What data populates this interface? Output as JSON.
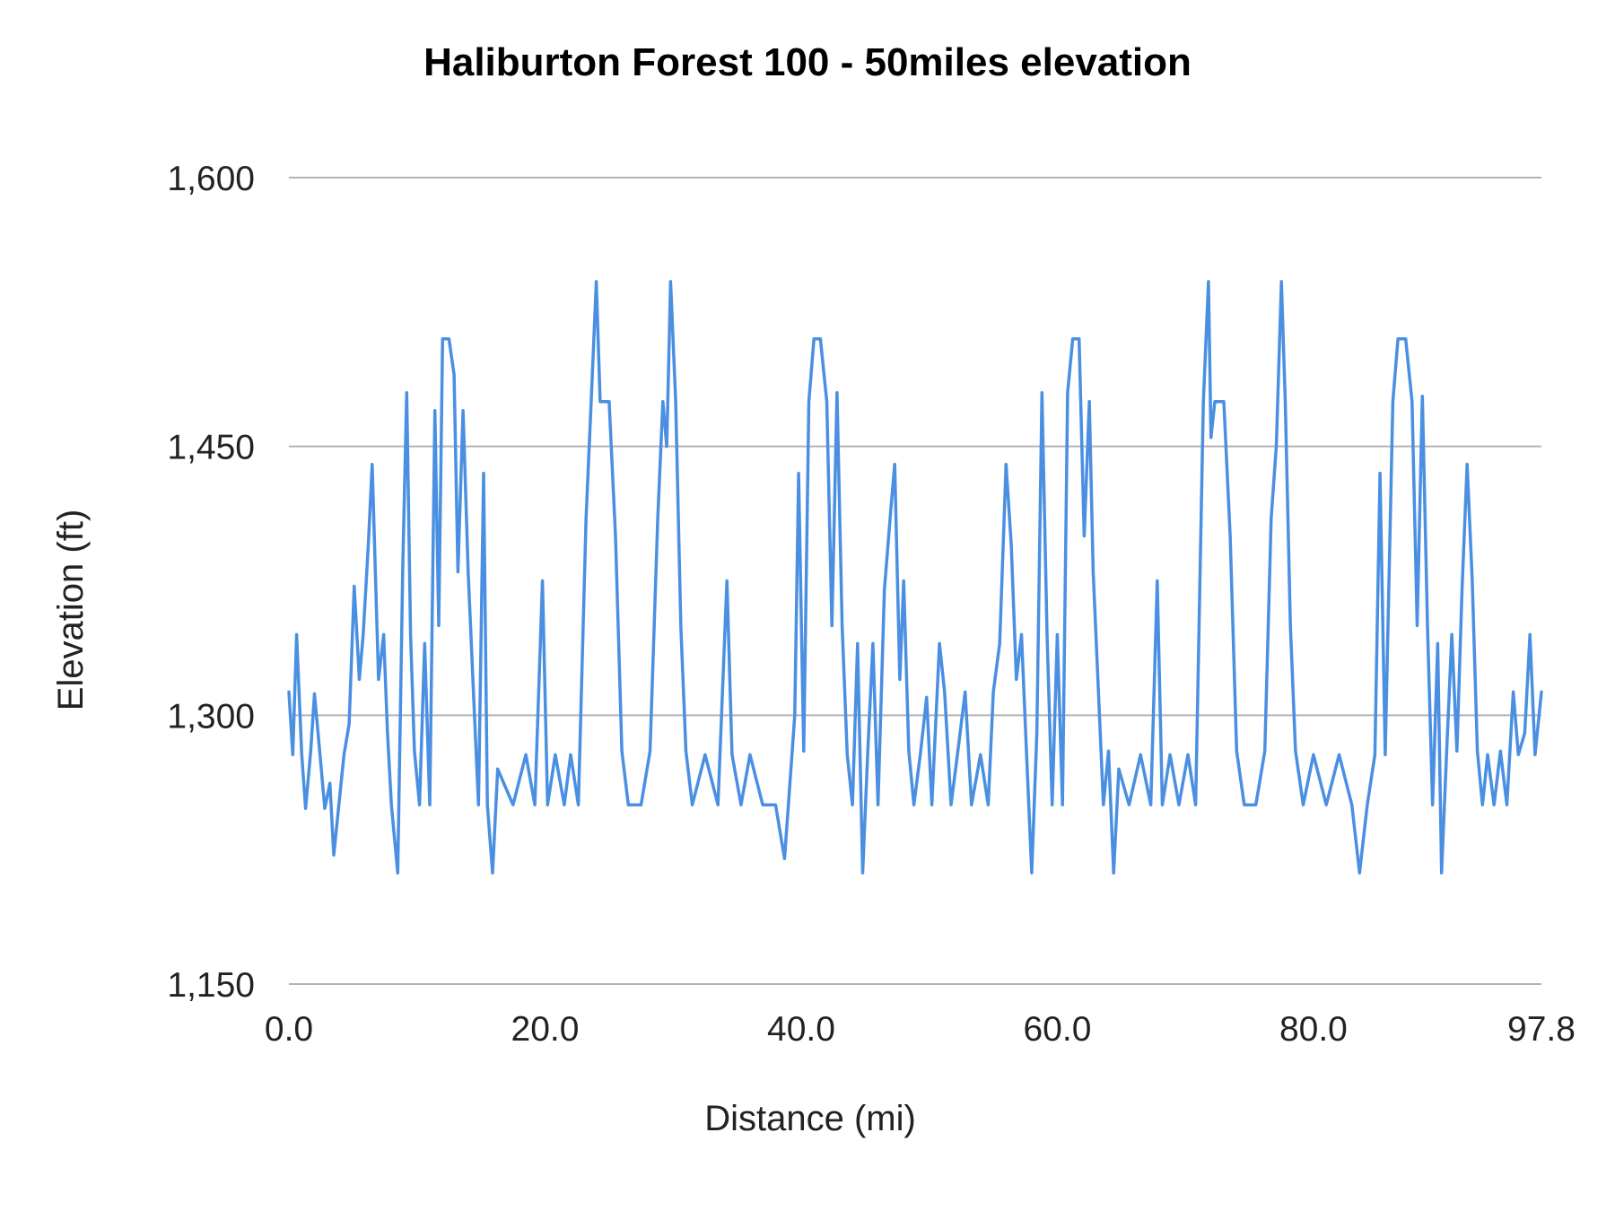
{
  "chart_data": {
    "type": "line",
    "title": "Haliburton Forest 100 - 50miles elevation",
    "xlabel": "Distance (mi)",
    "ylabel": "Elevation (ft)",
    "xlim": [
      0,
      97.8
    ],
    "ylim": [
      1150,
      1600
    ],
    "x_ticks": [
      0,
      20,
      40,
      60,
      80,
      97.8
    ],
    "x_tick_labels": [
      "0.0",
      "20.0",
      "40.0",
      "60.0",
      "80.0",
      "97.8"
    ],
    "y_ticks": [
      1150,
      1300,
      1450,
      1600
    ],
    "y_tick_labels": [
      "1,150",
      "1,300",
      "1,450",
      "1,600"
    ],
    "grid": true,
    "legend": "none",
    "series_color": "#4a8fe2",
    "series": [
      {
        "points": [
          [
            0.0,
            1313
          ],
          [
            0.3,
            1278
          ],
          [
            0.6,
            1345
          ],
          [
            1.0,
            1278
          ],
          [
            1.3,
            1248
          ],
          [
            1.7,
            1280
          ],
          [
            2.0,
            1312
          ],
          [
            2.4,
            1280
          ],
          [
            2.8,
            1248
          ],
          [
            3.2,
            1262
          ],
          [
            3.5,
            1222
          ],
          [
            3.9,
            1250
          ],
          [
            4.3,
            1278
          ],
          [
            4.7,
            1295
          ],
          [
            5.1,
            1372
          ],
          [
            5.5,
            1320
          ],
          [
            5.8,
            1345
          ],
          [
            6.2,
            1395
          ],
          [
            6.5,
            1440
          ],
          [
            7.0,
            1320
          ],
          [
            7.4,
            1345
          ],
          [
            7.7,
            1290
          ],
          [
            8.0,
            1250
          ],
          [
            8.5,
            1212
          ],
          [
            8.9,
            1385
          ],
          [
            9.2,
            1480
          ],
          [
            9.5,
            1345
          ],
          [
            9.8,
            1280
          ],
          [
            10.2,
            1250
          ],
          [
            10.6,
            1340
          ],
          [
            11.0,
            1250
          ],
          [
            11.4,
            1470
          ],
          [
            11.7,
            1350
          ],
          [
            12.0,
            1510
          ],
          [
            12.5,
            1510
          ],
          [
            12.9,
            1490
          ],
          [
            13.2,
            1380
          ],
          [
            13.6,
            1470
          ],
          [
            14.0,
            1380
          ],
          [
            14.4,
            1315
          ],
          [
            14.8,
            1250
          ],
          [
            15.2,
            1435
          ],
          [
            15.5,
            1250
          ],
          [
            15.9,
            1212
          ],
          [
            16.3,
            1270
          ],
          [
            17.5,
            1250
          ],
          [
            18.5,
            1278
          ],
          [
            19.2,
            1250
          ],
          [
            19.8,
            1375
          ],
          [
            20.2,
            1250
          ],
          [
            20.8,
            1278
          ],
          [
            21.5,
            1250
          ],
          [
            22.0,
            1278
          ],
          [
            22.6,
            1250
          ],
          [
            23.2,
            1410
          ],
          [
            23.6,
            1475
          ],
          [
            24.0,
            1542
          ],
          [
            24.3,
            1475
          ],
          [
            25.0,
            1475
          ],
          [
            25.5,
            1400
          ],
          [
            26.0,
            1280
          ],
          [
            26.5,
            1250
          ],
          [
            27.5,
            1250
          ],
          [
            28.2,
            1280
          ],
          [
            28.8,
            1410
          ],
          [
            29.2,
            1475
          ],
          [
            29.5,
            1450
          ],
          [
            29.8,
            1542
          ],
          [
            30.2,
            1475
          ],
          [
            30.6,
            1350
          ],
          [
            31.0,
            1280
          ],
          [
            31.5,
            1250
          ],
          [
            32.5,
            1278
          ],
          [
            33.5,
            1250
          ],
          [
            34.2,
            1375
          ],
          [
            34.6,
            1278
          ],
          [
            35.3,
            1250
          ],
          [
            36.0,
            1278
          ],
          [
            37.0,
            1250
          ],
          [
            38.0,
            1250
          ],
          [
            38.7,
            1220
          ],
          [
            39.0,
            1250
          ],
          [
            39.5,
            1300
          ],
          [
            39.8,
            1435
          ],
          [
            40.2,
            1280
          ],
          [
            40.6,
            1475
          ],
          [
            41.0,
            1510
          ],
          [
            41.5,
            1510
          ],
          [
            42.0,
            1475
          ],
          [
            42.4,
            1350
          ],
          [
            42.8,
            1480
          ],
          [
            43.2,
            1350
          ],
          [
            43.6,
            1278
          ],
          [
            44.0,
            1250
          ],
          [
            44.4,
            1340
          ],
          [
            44.8,
            1212
          ],
          [
            45.2,
            1280
          ],
          [
            45.6,
            1340
          ],
          [
            46.0,
            1250
          ],
          [
            46.5,
            1370
          ],
          [
            47.0,
            1415
          ],
          [
            47.3,
            1440
          ],
          [
            47.7,
            1320
          ],
          [
            48.0,
            1375
          ],
          [
            48.4,
            1280
          ],
          [
            48.8,
            1250
          ],
          [
            49.3,
            1278
          ],
          [
            49.8,
            1310
          ],
          [
            50.2,
            1250
          ],
          [
            50.8,
            1340
          ],
          [
            51.2,
            1313
          ],
          [
            51.7,
            1250
          ],
          [
            52.2,
            1278
          ],
          [
            52.8,
            1313
          ],
          [
            53.3,
            1250
          ],
          [
            54.0,
            1278
          ],
          [
            54.6,
            1250
          ],
          [
            55.0,
            1313
          ],
          [
            55.5,
            1340
          ],
          [
            56.0,
            1440
          ],
          [
            56.4,
            1395
          ],
          [
            56.8,
            1320
          ],
          [
            57.2,
            1345
          ],
          [
            57.6,
            1278
          ],
          [
            58.0,
            1212
          ],
          [
            58.4,
            1290
          ],
          [
            58.8,
            1480
          ],
          [
            59.2,
            1345
          ],
          [
            59.6,
            1250
          ],
          [
            60.0,
            1345
          ],
          [
            60.4,
            1250
          ],
          [
            60.8,
            1480
          ],
          [
            61.2,
            1510
          ],
          [
            61.7,
            1510
          ],
          [
            62.1,
            1400
          ],
          [
            62.5,
            1475
          ],
          [
            62.8,
            1380
          ],
          [
            63.2,
            1315
          ],
          [
            63.6,
            1250
          ],
          [
            64.0,
            1280
          ],
          [
            64.4,
            1212
          ],
          [
            64.8,
            1270
          ],
          [
            65.6,
            1250
          ],
          [
            66.5,
            1278
          ],
          [
            67.3,
            1250
          ],
          [
            67.8,
            1375
          ],
          [
            68.2,
            1250
          ],
          [
            68.8,
            1278
          ],
          [
            69.5,
            1250
          ],
          [
            70.2,
            1278
          ],
          [
            70.8,
            1250
          ],
          [
            71.4,
            1475
          ],
          [
            71.8,
            1542
          ],
          [
            72.0,
            1455
          ],
          [
            72.3,
            1475
          ],
          [
            73.0,
            1475
          ],
          [
            73.5,
            1400
          ],
          [
            74.0,
            1280
          ],
          [
            74.6,
            1250
          ],
          [
            75.5,
            1250
          ],
          [
            76.2,
            1280
          ],
          [
            76.7,
            1410
          ],
          [
            77.1,
            1450
          ],
          [
            77.5,
            1542
          ],
          [
            77.8,
            1475
          ],
          [
            78.2,
            1350
          ],
          [
            78.6,
            1280
          ],
          [
            79.2,
            1250
          ],
          [
            80.0,
            1278
          ],
          [
            81.0,
            1250
          ],
          [
            82.0,
            1278
          ],
          [
            83.0,
            1250
          ],
          [
            83.6,
            1212
          ],
          [
            84.2,
            1250
          ],
          [
            84.8,
            1278
          ],
          [
            85.2,
            1435
          ],
          [
            85.6,
            1278
          ],
          [
            86.2,
            1475
          ],
          [
            86.6,
            1510
          ],
          [
            87.2,
            1510
          ],
          [
            87.7,
            1475
          ],
          [
            88.1,
            1350
          ],
          [
            88.5,
            1478
          ],
          [
            88.9,
            1350
          ],
          [
            89.3,
            1250
          ],
          [
            89.7,
            1340
          ],
          [
            90.0,
            1212
          ],
          [
            90.4,
            1280
          ],
          [
            90.8,
            1345
          ],
          [
            91.2,
            1280
          ],
          [
            91.6,
            1370
          ],
          [
            92.0,
            1440
          ],
          [
            92.4,
            1375
          ],
          [
            92.8,
            1280
          ],
          [
            93.2,
            1250
          ],
          [
            93.6,
            1278
          ],
          [
            94.1,
            1250
          ],
          [
            94.6,
            1280
          ],
          [
            95.1,
            1250
          ],
          [
            95.6,
            1313
          ],
          [
            96.0,
            1278
          ],
          [
            96.5,
            1290
          ],
          [
            96.9,
            1345
          ],
          [
            97.3,
            1278
          ],
          [
            97.8,
            1313
          ]
        ]
      }
    ]
  }
}
